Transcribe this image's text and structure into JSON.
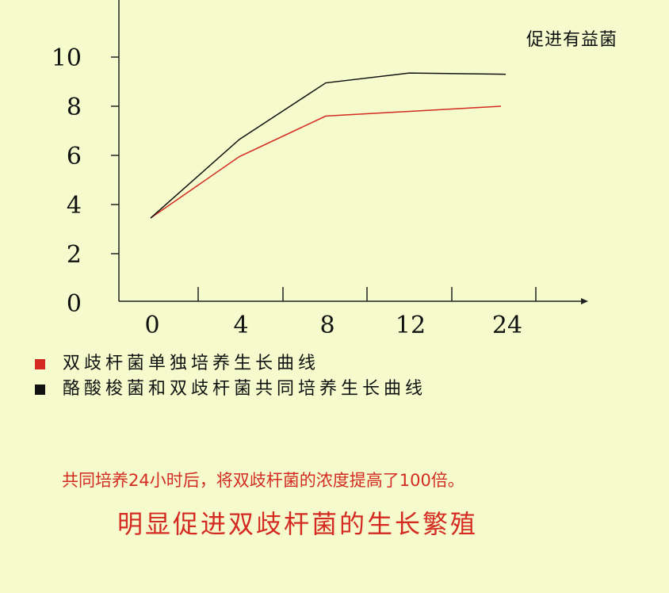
{
  "chart_data": {
    "type": "line",
    "title": "促进有益菌",
    "categories": [
      "0",
      "4",
      "8",
      "12",
      "24"
    ],
    "y_ticks": [
      "0",
      "2",
      "4",
      "6",
      "8",
      "10"
    ],
    "ylim": [
      0,
      12
    ],
    "grid": false,
    "legend_position": "bottom-left",
    "series": [
      {
        "name": "双歧杆菌单独培养生长曲线",
        "color": "#d42a22",
        "values": [
          3.45,
          5.95,
          7.6,
          null,
          8.0
        ]
      },
      {
        "name": "酪酸梭菌和双歧杆菌共同培养生长曲线",
        "color": "#111111",
        "values": [
          3.45,
          6.65,
          8.95,
          9.35,
          9.3
        ]
      }
    ]
  },
  "text": {
    "note": "共同培养24小时后，将双歧杆菌的浓度提高了100倍。",
    "conclusion": "明显促进双歧杆菌的生长繁殖"
  }
}
